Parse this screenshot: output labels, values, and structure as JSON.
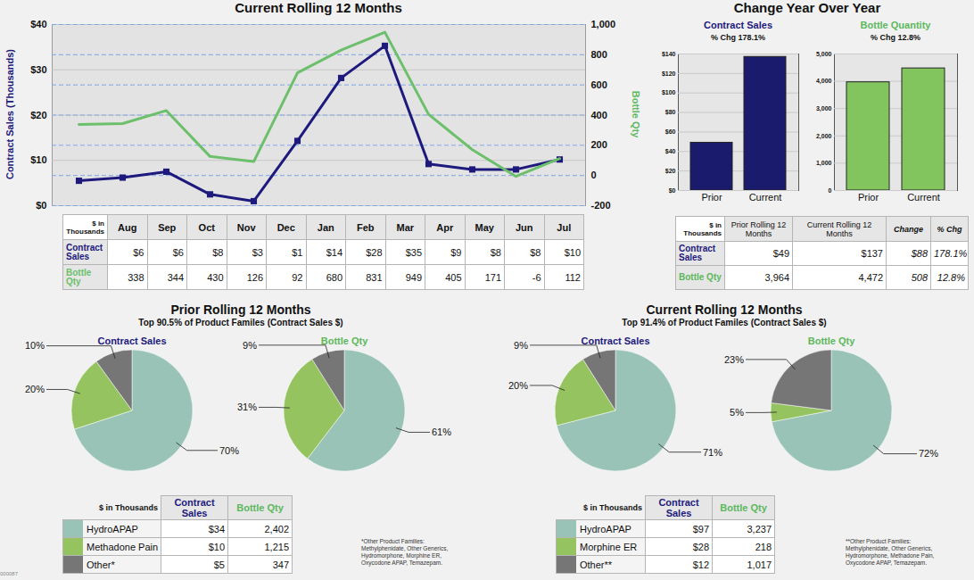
{
  "chart_data": [
    {
      "type": "line",
      "title": "Current Rolling 12 Months",
      "categories": [
        "Aug",
        "Sep",
        "Oct",
        "Nov",
        "Dec",
        "Jan",
        "Feb",
        "Mar",
        "Apr",
        "May",
        "Jun",
        "Jul"
      ],
      "table_header": "$ in Thousands",
      "series": [
        {
          "name": "Contract Sales",
          "color": "#1e1a7d",
          "marker": "square",
          "values": [
            5.5,
            6.2,
            7.5,
            2.5,
            1,
            14.3,
            28.2,
            35.3,
            9.2,
            8,
            8,
            10.2
          ],
          "table_values": [
            "$6",
            "$6",
            "$8",
            "$3",
            "$1",
            "$14",
            "$28",
            "$35",
            "$9",
            "$8",
            "$8",
            "$10"
          ]
        },
        {
          "name": "Bottle Qty",
          "color": "#6cbf6b",
          "axis": "y2",
          "marker": "none",
          "values": [
            338,
            344,
            430,
            126,
            92,
            680,
            831,
            949,
            405,
            171,
            -6,
            112
          ],
          "table_values": [
            "338",
            "344",
            "430",
            "126",
            "92",
            "680",
            "831",
            "949",
            "405",
            "171",
            "-6",
            "112"
          ]
        }
      ],
      "ylabel": "Contract Sales (Thousands)",
      "y2label": "Bottle Qty",
      "ylim": [
        0,
        40
      ],
      "yticks": [
        {
          "value": 0,
          "label": "$0"
        },
        {
          "value": 10,
          "label": "$10"
        },
        {
          "value": 20,
          "label": "$20"
        },
        {
          "value": 30,
          "label": "$30"
        },
        {
          "value": 40,
          "label": "$40"
        }
      ],
      "y2lim": [
        -200,
        1000
      ],
      "y2ticks": [
        -200,
        0,
        200,
        400,
        600,
        800,
        {
          "value": 1000,
          "label": "1,000"
        }
      ],
      "grid": true
    },
    {
      "type": "bar",
      "title": "Contract Sales",
      "subtitle": "% Chg 178.1%",
      "categories": [
        "Prior",
        "Current"
      ],
      "values": [
        49,
        137
      ],
      "color": "#1b1b6e",
      "ylim": [
        0,
        140
      ],
      "yticks": [
        {
          "value": 0,
          "label": "$0"
        },
        {
          "value": 20,
          "label": "$20"
        },
        {
          "value": 40,
          "label": "$40"
        },
        {
          "value": 60,
          "label": "$60"
        },
        {
          "value": 80,
          "label": "$80"
        },
        {
          "value": 100,
          "label": "$100"
        },
        {
          "value": 120,
          "label": "$120"
        },
        {
          "value": 140,
          "label": "$140"
        }
      ],
      "grid": true
    },
    {
      "type": "bar",
      "title": "Bottle Quantity",
      "subtitle": "% Chg 12.8%",
      "categories": [
        "Prior",
        "Current"
      ],
      "values": [
        3964,
        4472
      ],
      "color": "#82c45e",
      "ylim": [
        0,
        5000
      ],
      "yticks": [
        0,
        {
          "value": 1000,
          "label": "1,000"
        },
        {
          "value": 2000,
          "label": "2,000"
        },
        {
          "value": 3000,
          "label": "3,000"
        },
        {
          "value": 4000,
          "label": "4,000"
        },
        {
          "value": 5000,
          "label": "5,000"
        }
      ],
      "grid": true
    },
    {
      "type": "pie",
      "title": "Contract Sales",
      "values": [
        70,
        20,
        10
      ],
      "value_labels": [
        "70%",
        "20%",
        "10%"
      ],
      "colors": [
        "#99c3b6",
        "#95c35f",
        "#767676"
      ],
      "data_labels": true
    },
    {
      "type": "pie",
      "title": "Bottle Qty",
      "values": [
        61,
        31,
        9
      ],
      "value_labels": [
        "61%",
        "31%",
        "9%"
      ],
      "colors": [
        "#99c3b6",
        "#95c35f",
        "#767676"
      ],
      "data_labels": true
    },
    {
      "type": "pie",
      "title": "Contract Sales",
      "values": [
        71,
        20,
        9
      ],
      "value_labels": [
        "71%",
        "20%",
        "9%"
      ],
      "colors": [
        "#99c3b6",
        "#95c35f",
        "#767676"
      ],
      "data_labels": true
    },
    {
      "type": "pie",
      "title": "Bottle Qty",
      "values": [
        72,
        5,
        23
      ],
      "value_labels": [
        "72%",
        "5%",
        "23%"
      ],
      "colors": [
        "#99c3b6",
        "#95c35f",
        "#767676"
      ],
      "data_labels": true
    }
  ],
  "yoy": {
    "title": "Change Year Over Year",
    "table": {
      "header": [
        "$ in Thousands",
        "Prior Rolling 12 Months",
        "Current Rolling 12 Months",
        "Change",
        "% Chg"
      ],
      "rows": [
        [
          "Contract Sales",
          "$49",
          "$137",
          "$88",
          "178.1%"
        ],
        [
          "Bottle Qty",
          "3,964",
          "4,472",
          "508",
          "12.8%"
        ]
      ]
    }
  },
  "pie_sections": [
    {
      "title": "Prior Rolling 12 Months",
      "subtitle": "Top 90.5% of Product Familes (Contract Sales $)",
      "table": {
        "header": [
          "$ in Thousands",
          "Contract Sales",
          "Bottle Qty"
        ],
        "rows": [
          [
            "HydroAPAP",
            "$34",
            "2,402"
          ],
          [
            "Methadone Pain",
            "$10",
            "1,215"
          ],
          [
            "Other*",
            "$5",
            "347"
          ]
        ]
      },
      "footnote": "*Other Product Families: Methylphenidate, Other Generics, Hydromorphone, Morphine ER, Oxycodone APAP, Temazepam."
    },
    {
      "title": "Current Rolling 12 Months",
      "subtitle": "Top 91.4% of Product Familes (Contract Sales $)",
      "table": {
        "header": [
          "$ in Thousands",
          "Contract Sales",
          "Bottle Qty"
        ],
        "rows": [
          [
            "HydroAPAP",
            "$97",
            "3,237"
          ],
          [
            "Morphine ER",
            "$28",
            "218"
          ],
          [
            "Other**",
            "$12",
            "1,017"
          ]
        ]
      },
      "footnote": "**Other Product Families: Methylphenidate, Other Generics, Hydromorphone, Methadone Pain, Oxycodone APAP, Temazepam."
    }
  ],
  "page_id": "000087"
}
